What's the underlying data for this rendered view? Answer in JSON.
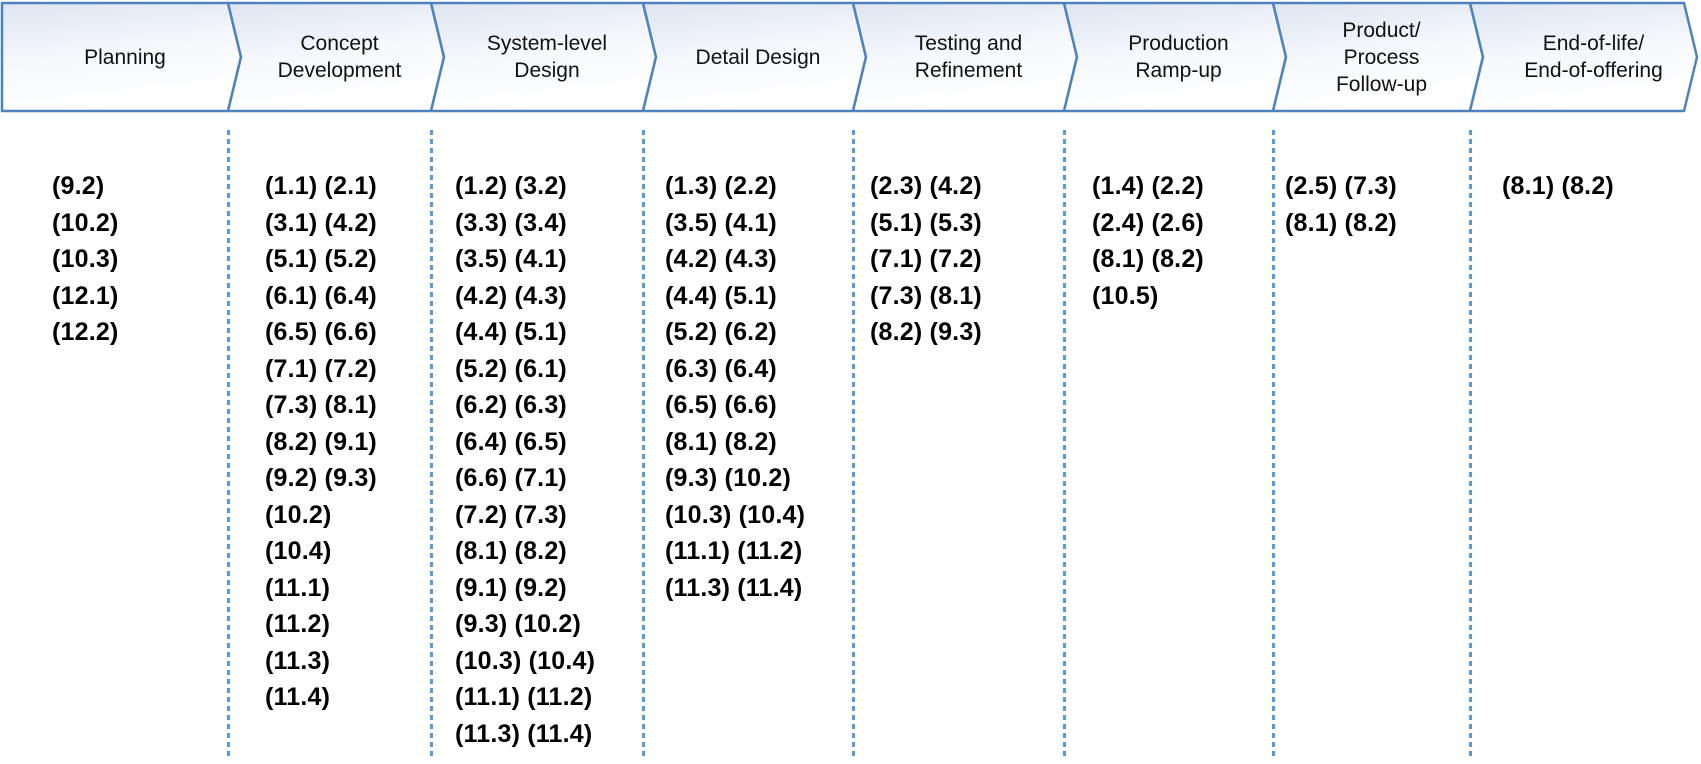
{
  "diagram": {
    "type": "process-flow",
    "stages": [
      {
        "label": "Planning",
        "items": [
          "(9.2)",
          "(10.2)",
          "(10.3)",
          "(12.1)",
          "(12.2)"
        ]
      },
      {
        "label": "Concept\nDevelopment",
        "items": [
          "(1.1) (2.1)",
          "(3.1) (4.2)",
          "(5.1) (5.2)",
          "(6.1) (6.4)",
          "(6.5) (6.6)",
          "(7.1) (7.2)",
          "(7.3) (8.1)",
          "(8.2) (9.1)",
          "(9.2) (9.3)",
          "(10.2)",
          "(10.4)",
          "(11.1)",
          "(11.2)",
          "(11.3)",
          "(11.4)"
        ]
      },
      {
        "label": "System-level\nDesign",
        "items": [
          "(1.2) (3.2)",
          "(3.3) (3.4)",
          "(3.5) (4.1)",
          "(4.2) (4.3)",
          "(4.4) (5.1)",
          "(5.2) (6.1)",
          "(6.2) (6.3)",
          "(6.4) (6.5)",
          "(6.6) (7.1)",
          "(7.2) (7.3)",
          "(8.1) (8.2)",
          "(9.1) (9.2)",
          "(9.3) (10.2)",
          "(10.3) (10.4)",
          "(11.1) (11.2)",
          "(11.3) (11.4)"
        ]
      },
      {
        "label": "Detail Design",
        "items": [
          "(1.3) (2.2)",
          "(3.5) (4.1)",
          "(4.2) (4.3)",
          "(4.4) (5.1)",
          "(5.2) (6.2)",
          "(6.3) (6.4)",
          "(6.5) (6.6)",
          "(8.1) (8.2)",
          "(9.3) (10.2)",
          "(10.3) (10.4)",
          "(11.1) (11.2)",
          "(11.3) (11.4)"
        ]
      },
      {
        "label": "Testing and\nRefinement",
        "items": [
          "(2.3) (4.2)",
          "(5.1) (5.3)",
          "(7.1) (7.2)",
          "(7.3) (8.1)",
          "(8.2) (9.3)"
        ]
      },
      {
        "label": "Production\nRamp-up",
        "items": [
          "(1.4) (2.2)",
          "(2.4) (2.6)",
          "(8.1) (8.2)",
          "(10.5)"
        ]
      },
      {
        "label": "Product/\nProcess\nFollow-up",
        "items": [
          "(2.5) (7.3)",
          "(8.1) (8.2)"
        ]
      },
      {
        "label": "End-of-life/\nEnd-of-offering",
        "items": [
          "(8.1) (8.2)"
        ]
      }
    ]
  },
  "colors": {
    "chevron_border": "#4f81bd",
    "chevron_fill_top": "#dde5f1",
    "chevron_fill_bottom": "#ffffff",
    "separator": "#5b9bd5",
    "text": "#000000"
  }
}
